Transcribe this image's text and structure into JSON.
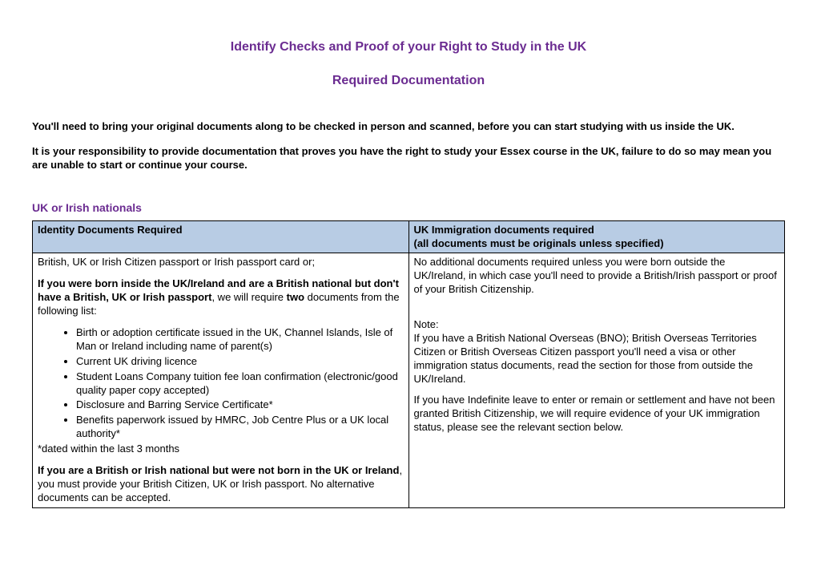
{
  "title_main": "Identify Checks and Proof of your Right to Study in the UK",
  "title_sub": "Required Documentation",
  "intro_para_1": "You'll need to bring your original documents along to be checked in person and scanned, before you can start studying with us inside the UK.",
  "intro_para_2": "It is your responsibility to provide documentation that proves you have the right to study your Essex course in the UK, failure to do so may mean you are unable to start or continue your course.",
  "section_heading": "UK or Irish nationals",
  "table": {
    "header_col1": "Identity Documents Required",
    "header_col2_line1": "UK Immigration documents required",
    "header_col2_line2": "(all documents must be originals unless specified)",
    "col1_line1": "British, UK or Irish Citizen passport or Irish passport card or;",
    "col1_bold_lead": "If you were born inside the UK/Ireland and are a British national but don't have a British, UK or Irish passport",
    "col1_bold_tail": ", we will require ",
    "col1_bold_two": "two",
    "col1_bold_tail2": " documents from the following list:",
    "bullets": [
      "Birth or adoption certificate issued in the UK, Channel Islands, Isle of Man or Ireland including name of parent(s)",
      "Current UK driving licence",
      "Student Loans Company tuition fee loan confirmation (electronic/good quality paper copy accepted)",
      "Disclosure and Barring Service Certificate*",
      "Benefits paperwork issued by HMRC, Job Centre Plus or a UK local authority*"
    ],
    "col1_footnote": "*dated within the last 3 months",
    "col1_final_bold": "If you are a British or Irish national but were not born in the UK or Ireland",
    "col1_final_tail": ", you must provide your British Citizen, UK or Irish passport. No alternative documents can be accepted.",
    "col2_p1": "No additional documents required unless you were born outside the UK/Ireland, in which case you'll need to provide a British/Irish passport or proof of your British Citizenship.",
    "col2_note_label": "Note:",
    "col2_note_body": "If you have a British National Overseas (BNO); British Overseas Territories Citizen or British Overseas Citizen passport you'll need a visa or other immigration status documents, read the section for those from outside the UK/Ireland.",
    "col2_p3": "If you have Indefinite leave to enter or remain or settlement and have not been granted British Citizenship, we will require evidence of your UK immigration status, please see the relevant section below."
  },
  "colors": {
    "heading_purple": "#6b2c91",
    "table_header_bg": "#b8cce4",
    "border": "#000000",
    "body_text": "#000000",
    "background": "#ffffff"
  }
}
